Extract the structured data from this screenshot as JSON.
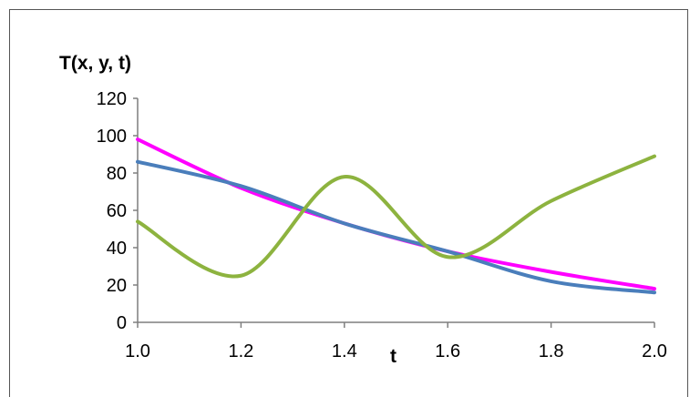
{
  "chart_data": {
    "type": "line",
    "ylabel": "T(x, y, t)",
    "xlabel": "t",
    "xlim": [
      1.0,
      2.0
    ],
    "ylim": [
      0,
      120
    ],
    "x_ticks": [
      "1.0",
      "1.2",
      "1.4",
      "1.6",
      "1.8",
      "2.0"
    ],
    "y_ticks": [
      "0",
      "20",
      "40",
      "60",
      "80",
      "100",
      "120"
    ],
    "grid": false,
    "legend": "none",
    "series": [
      {
        "color": "#FF00FF",
        "x": [
          1.0,
          1.2,
          1.4,
          1.6,
          1.8,
          2.0
        ],
        "y": [
          98,
          72,
          53,
          38,
          27,
          18
        ]
      },
      {
        "color": "#4A7EBB",
        "x": [
          1.0,
          1.2,
          1.4,
          1.6,
          1.8,
          2.0
        ],
        "y": [
          86,
          73,
          53,
          38,
          22,
          16
        ]
      },
      {
        "color": "#8DB33F",
        "x": [
          1.0,
          1.2,
          1.4,
          1.6,
          1.8,
          2.0
        ],
        "y": [
          54,
          25,
          78,
          35,
          65,
          89
        ]
      }
    ]
  }
}
